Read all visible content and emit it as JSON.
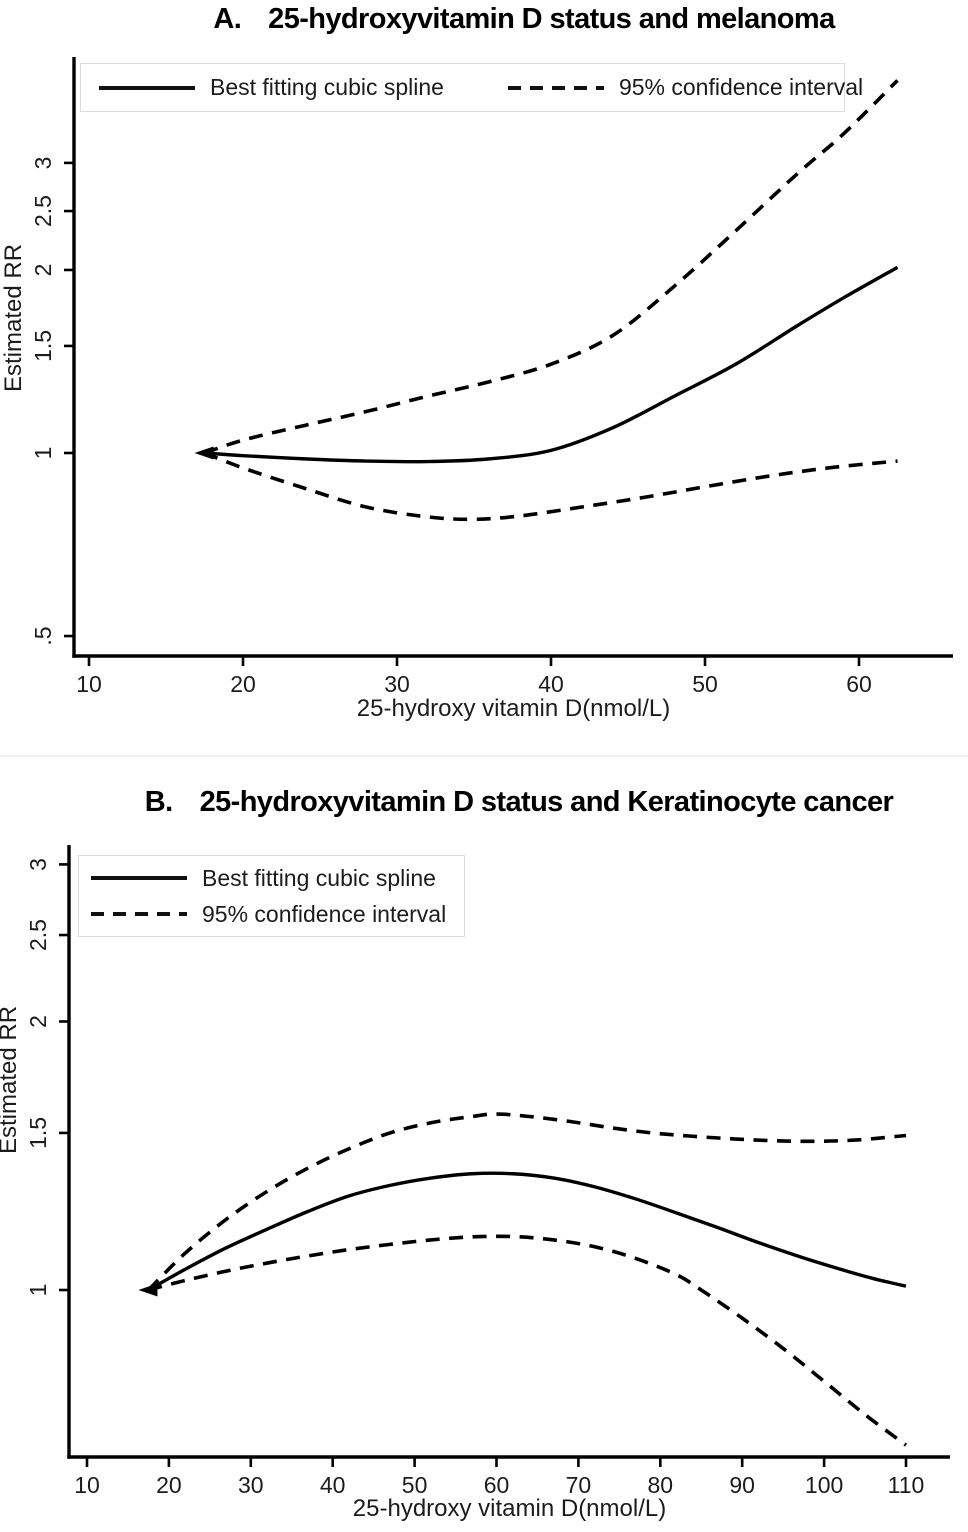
{
  "page": {
    "background": "#ffffff",
    "line_color": "#000000",
    "text_color": "#1c1c1c",
    "legend_border_color": "#dcdcdc"
  },
  "chart_data": [
    {
      "type": "line",
      "panel_label": "A.",
      "title_text": "25-hydroxyvitamin D status and melanoma",
      "xlabel": "25-hydroxy vitamin D(nmol/L)",
      "ylabel": "Estimated RR",
      "yscale": "log",
      "grid": false,
      "legend_position": "top-left-horizontal",
      "legend_entries": [
        "Best fitting cubic spline",
        "95% confidence interval"
      ],
      "xlim": [
        9,
        66
      ],
      "ylim": [
        0.46,
        4.45
      ],
      "xticks": [
        10,
        20,
        30,
        40,
        50,
        60
      ],
      "yticks": [
        {
          "label": ".5",
          "value": 0.5
        },
        {
          "label": "1",
          "value": 1
        },
        {
          "label": "1.5",
          "value": 1.5
        },
        {
          "label": "2",
          "value": 2
        },
        {
          "label": "2.5",
          "value": 2.5
        },
        {
          "label": "3",
          "value": 3
        }
      ],
      "series": [
        {
          "name": "Best fitting cubic spline",
          "style": "solid",
          "points": [
            [
              17.5,
              1.0
            ],
            [
              20,
              0.99
            ],
            [
              24,
              0.978
            ],
            [
              28,
              0.97
            ],
            [
              32,
              0.968
            ],
            [
              36,
              0.978
            ],
            [
              40,
              1.01
            ],
            [
              44,
              1.1
            ],
            [
              48,
              1.24
            ],
            [
              52,
              1.4
            ],
            [
              56,
              1.62
            ],
            [
              59,
              1.8
            ],
            [
              62.5,
              2.02
            ]
          ]
        },
        {
          "name": "95% CI upper",
          "style": "dashed",
          "points": [
            [
              17.5,
              1.0
            ],
            [
              20,
              1.05
            ],
            [
              24,
              1.11
            ],
            [
              28,
              1.17
            ],
            [
              32,
              1.24
            ],
            [
              36,
              1.31
            ],
            [
              40,
              1.4
            ],
            [
              44,
              1.56
            ],
            [
              48,
              1.88
            ],
            [
              52,
              2.32
            ],
            [
              56,
              2.88
            ],
            [
              59,
              3.35
            ],
            [
              62.5,
              4.1
            ]
          ]
        },
        {
          "name": "95% CI lower",
          "style": "dashed",
          "points": [
            [
              17.5,
              1.0
            ],
            [
              20,
              0.945
            ],
            [
              24,
              0.875
            ],
            [
              28,
              0.815
            ],
            [
              32,
              0.785
            ],
            [
              35,
              0.778
            ],
            [
              38,
              0.788
            ],
            [
              42,
              0.815
            ],
            [
              46,
              0.845
            ],
            [
              50,
              0.88
            ],
            [
              54,
              0.915
            ],
            [
              58,
              0.945
            ],
            [
              62.5,
              0.97
            ]
          ]
        }
      ]
    },
    {
      "type": "line",
      "panel_label": "B.",
      "title_text": "25-hydroxyvitamin D status and Keratinocyte cancer",
      "xlabel": "25-hydroxy vitamin D(nmol/L)",
      "ylabel": "Estimated RR",
      "yscale": "log",
      "grid": false,
      "legend_position": "top-left-vertical",
      "legend_entries": [
        "Best fitting cubic spline",
        "95% confidence interval"
      ],
      "xlim": [
        8,
        115
      ],
      "ylim": [
        0.65,
        3.15
      ],
      "xticks": [
        10,
        20,
        30,
        40,
        50,
        60,
        70,
        80,
        90,
        100,
        110
      ],
      "yticks": [
        {
          "label": "1",
          "value": 1
        },
        {
          "label": "1.5",
          "value": 1.5
        },
        {
          "label": "2",
          "value": 2
        },
        {
          "label": "2.5",
          "value": 2.5
        },
        {
          "label": "3",
          "value": 3
        }
      ],
      "series": [
        {
          "name": "Best fitting cubic spline",
          "style": "solid",
          "points": [
            [
              17.5,
              1.0
            ],
            [
              22,
              1.055
            ],
            [
              27,
              1.115
            ],
            [
              32,
              1.17
            ],
            [
              37,
              1.225
            ],
            [
              42,
              1.275
            ],
            [
              47,
              1.31
            ],
            [
              52,
              1.335
            ],
            [
              57,
              1.35
            ],
            [
              62,
              1.35
            ],
            [
              67,
              1.335
            ],
            [
              72,
              1.305
            ],
            [
              77,
              1.265
            ],
            [
              82,
              1.22
            ],
            [
              87,
              1.175
            ],
            [
              92,
              1.13
            ],
            [
              97,
              1.09
            ],
            [
              102,
              1.055
            ],
            [
              106,
              1.03
            ],
            [
              110,
              1.01
            ]
          ]
        },
        {
          "name": "95% CI upper",
          "style": "dashed",
          "points": [
            [
              17.5,
              1.0
            ],
            [
              22,
              1.1
            ],
            [
              27,
              1.2
            ],
            [
              32,
              1.29
            ],
            [
              37,
              1.37
            ],
            [
              42,
              1.44
            ],
            [
              47,
              1.5
            ],
            [
              52,
              1.54
            ],
            [
              57,
              1.565
            ],
            [
              60,
              1.575
            ],
            [
              64,
              1.565
            ],
            [
              69,
              1.545
            ],
            [
              74,
              1.52
            ],
            [
              79,
              1.5
            ],
            [
              84,
              1.487
            ],
            [
              89,
              1.477
            ],
            [
              94,
              1.47
            ],
            [
              99,
              1.468
            ],
            [
              104,
              1.473
            ],
            [
              110,
              1.49
            ]
          ]
        },
        {
          "name": "95% CI lower",
          "style": "dashed",
          "points": [
            [
              17.5,
              1.0
            ],
            [
              22,
              1.025
            ],
            [
              27,
              1.05
            ],
            [
              32,
              1.072
            ],
            [
              37,
              1.092
            ],
            [
              42,
              1.11
            ],
            [
              47,
              1.125
            ],
            [
              52,
              1.138
            ],
            [
              57,
              1.147
            ],
            [
              62,
              1.148
            ],
            [
              67,
              1.138
            ],
            [
              72,
              1.118
            ],
            [
              77,
              1.085
            ],
            [
              82,
              1.04
            ],
            [
              85,
              1.0
            ],
            [
              90,
              0.93
            ],
            [
              95,
              0.86
            ],
            [
              100,
              0.79
            ],
            [
              105,
              0.725
            ],
            [
              110,
              0.67
            ]
          ]
        }
      ]
    }
  ]
}
